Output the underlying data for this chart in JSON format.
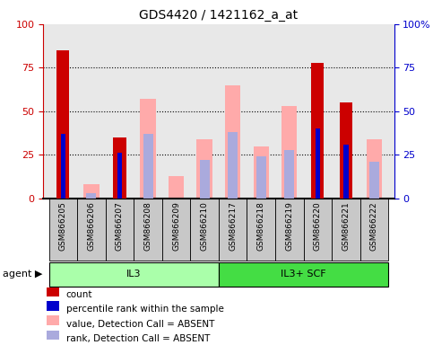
{
  "title": "GDS4420 / 1421162_a_at",
  "categories": [
    "GSM866205",
    "GSM866206",
    "GSM866207",
    "GSM866208",
    "GSM866209",
    "GSM866210",
    "GSM866217",
    "GSM866218",
    "GSM866219",
    "GSM866220",
    "GSM866221",
    "GSM866222"
  ],
  "red_bars": [
    85,
    0,
    35,
    0,
    0,
    0,
    0,
    0,
    0,
    78,
    55,
    0
  ],
  "blue_bars": [
    37,
    0,
    26,
    0,
    0,
    0,
    0,
    0,
    0,
    40,
    31,
    0
  ],
  "pink_bars": [
    0,
    8,
    0,
    57,
    13,
    34,
    65,
    30,
    53,
    0,
    0,
    34
  ],
  "lav_bars": [
    0,
    3,
    0,
    37,
    0,
    22,
    38,
    24,
    28,
    0,
    0,
    21
  ],
  "agent_groups": [
    {
      "label": "IL3",
      "start": 0,
      "end": 6,
      "color": "#aaffaa"
    },
    {
      "label": "IL3+ SCF",
      "start": 6,
      "end": 12,
      "color": "#44dd44"
    }
  ],
  "ylim": [
    0,
    100
  ],
  "yticks": [
    0,
    25,
    50,
    75,
    100
  ],
  "left_ycolor": "#cc0000",
  "right_ycolor": "#0000cc",
  "red_color": "#cc0000",
  "blue_color": "#0000cc",
  "pink_color": "#ffaaaa",
  "lav_color": "#aaaadd",
  "bg_plot": "#e8e8e8",
  "bg_label": "#c8c8c8"
}
